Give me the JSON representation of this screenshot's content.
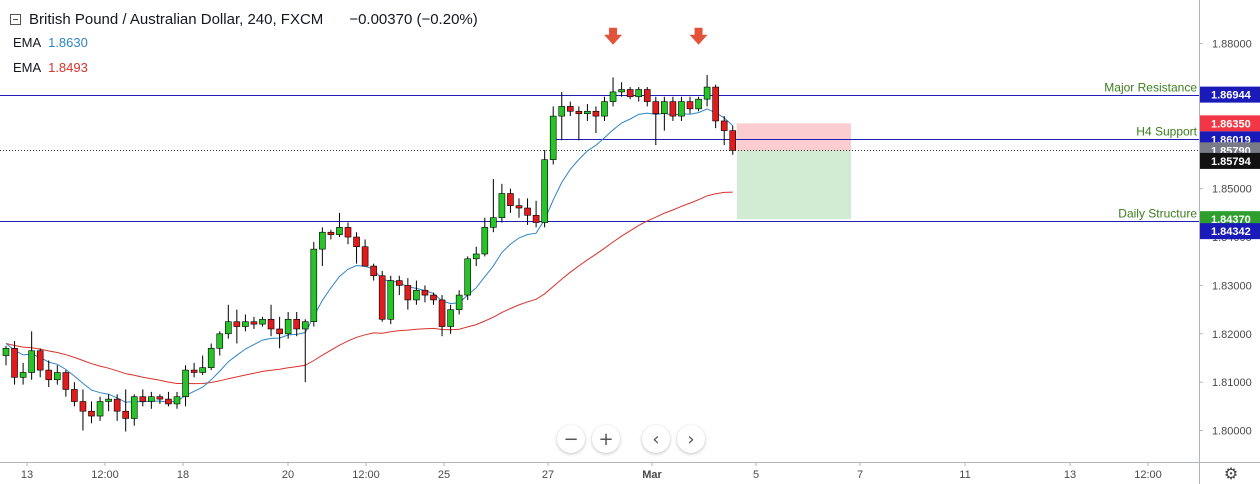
{
  "header": {
    "symbol_title": "British Pound / Australian Dollar, 240, FXCM",
    "change": "−0.00370 (−0.20%)"
  },
  "indicators": [
    {
      "label": "EMA",
      "value": "1.8630",
      "color": "#2f86c6"
    },
    {
      "label": "EMA",
      "value": "1.8493",
      "color": "#d9332c"
    }
  ],
  "chart_data": {
    "type": "candlestick",
    "y_range": [
      1.7935,
      1.889
    ],
    "y_ticks": [
      "1.88000",
      "1.87000",
      "1.86000",
      "1.85000",
      "1.84000",
      "1.83000",
      "1.82000",
      "1.81000",
      "1.80000"
    ],
    "x_ticks": [
      "13",
      "12:00",
      "18",
      "20",
      "12:00",
      "25",
      "27",
      "Mar",
      "5",
      "7",
      "11",
      "13",
      "12:00"
    ],
    "horizontal_levels": [
      {
        "label": "Major Resistance",
        "price": 1.86944,
        "price_label": "1.86944"
      },
      {
        "label": "H4 Support",
        "price": 1.86019,
        "price_label": "1.86019"
      },
      {
        "label": "Daily Structure",
        "price": 1.84342,
        "price_label": "1.84342"
      }
    ],
    "current_price": {
      "price": 1.85794,
      "label": "1.85794"
    },
    "trade_box": {
      "entry": 1.8579,
      "entry_label": "1.85790",
      "stop": 1.8635,
      "stop_label": "1.86350",
      "target": 1.8437,
      "target_label": "1.84370"
    },
    "annotations": [
      {
        "type": "down-arrow",
        "price": 1.881
      },
      {
        "type": "down-arrow",
        "price": 1.881
      }
    ],
    "candles": [
      [
        1.8155,
        1.8175,
        1.8135,
        1.817
      ],
      [
        1.817,
        1.8185,
        1.8095,
        1.811
      ],
      [
        1.811,
        1.814,
        1.8095,
        1.812
      ],
      [
        1.812,
        1.8205,
        1.8105,
        1.8165
      ],
      [
        1.8165,
        1.817,
        1.811,
        1.8125
      ],
      [
        1.8125,
        1.8145,
        1.809,
        1.8105
      ],
      [
        1.8105,
        1.8135,
        1.8095,
        1.812
      ],
      [
        1.812,
        1.8125,
        1.807,
        1.8085
      ],
      [
        1.8085,
        1.81,
        1.805,
        1.806
      ],
      [
        1.806,
        1.8085,
        1.8,
        1.804
      ],
      [
        1.804,
        1.806,
        1.8015,
        1.803
      ],
      [
        1.803,
        1.807,
        1.802,
        1.806
      ],
      [
        1.806,
        1.8075,
        1.804,
        1.8065
      ],
      [
        1.8065,
        1.8075,
        1.802,
        1.804
      ],
      [
        1.804,
        1.8085,
        1.7998,
        1.8025
      ],
      [
        1.8025,
        1.8075,
        1.801,
        1.807
      ],
      [
        1.807,
        1.8085,
        1.805,
        1.806
      ],
      [
        1.806,
        1.808,
        1.8045,
        1.807
      ],
      [
        1.807,
        1.8075,
        1.8055,
        1.8065
      ],
      [
        1.8065,
        1.808,
        1.805,
        1.8055
      ],
      [
        1.8055,
        1.808,
        1.8045,
        1.807
      ],
      [
        1.807,
        1.8135,
        1.805,
        1.8125
      ],
      [
        1.8125,
        1.814,
        1.811,
        1.812
      ],
      [
        1.812,
        1.8155,
        1.8115,
        1.813
      ],
      [
        1.813,
        1.818,
        1.8125,
        1.817
      ],
      [
        1.817,
        1.8205,
        1.8155,
        1.82
      ],
      [
        1.82,
        1.826,
        1.819,
        1.8225
      ],
      [
        1.8225,
        1.825,
        1.818,
        1.8215
      ],
      [
        1.8215,
        1.824,
        1.8205,
        1.8225
      ],
      [
        1.8225,
        1.8235,
        1.821,
        1.822
      ],
      [
        1.822,
        1.8235,
        1.8215,
        1.823
      ],
      [
        1.823,
        1.826,
        1.8195,
        1.821
      ],
      [
        1.821,
        1.8235,
        1.817,
        1.82
      ],
      [
        1.82,
        1.8245,
        1.819,
        1.823
      ],
      [
        1.823,
        1.8245,
        1.8195,
        1.821
      ],
      [
        1.821,
        1.823,
        1.81,
        1.8225
      ],
      [
        1.8225,
        1.839,
        1.8215,
        1.8375
      ],
      [
        1.8375,
        1.842,
        1.834,
        1.841
      ],
      [
        1.841,
        1.8415,
        1.8395,
        1.8405
      ],
      [
        1.8405,
        1.845,
        1.84,
        1.842
      ],
      [
        1.842,
        1.843,
        1.8385,
        1.84
      ],
      [
        1.84,
        1.841,
        1.8345,
        1.838
      ],
      [
        1.838,
        1.8395,
        1.8345,
        1.834
      ],
      [
        1.834,
        1.8345,
        1.831,
        1.832
      ],
      [
        1.832,
        1.833,
        1.8225,
        1.823
      ],
      [
        1.823,
        1.832,
        1.822,
        1.831
      ],
      [
        1.831,
        1.832,
        1.828,
        1.83
      ],
      [
        1.83,
        1.8315,
        1.825,
        1.827
      ],
      [
        1.827,
        1.831,
        1.826,
        1.829
      ],
      [
        1.829,
        1.83,
        1.8265,
        1.828
      ],
      [
        1.828,
        1.8285,
        1.826,
        1.827
      ],
      [
        1.827,
        1.828,
        1.8195,
        1.8215
      ],
      [
        1.8215,
        1.826,
        1.82,
        1.825
      ],
      [
        1.825,
        1.829,
        1.824,
        1.828
      ],
      [
        1.828,
        1.836,
        1.827,
        1.8355
      ],
      [
        1.8355,
        1.838,
        1.834,
        1.8365
      ],
      [
        1.8365,
        1.844,
        1.836,
        1.842
      ],
      [
        1.842,
        1.852,
        1.841,
        1.844
      ],
      [
        1.844,
        1.851,
        1.843,
        1.849
      ],
      [
        1.849,
        1.85,
        1.845,
        1.8465
      ],
      [
        1.8465,
        1.848,
        1.844,
        1.846
      ],
      [
        1.846,
        1.848,
        1.8425,
        1.8445
      ],
      [
        1.8445,
        1.8475,
        1.842,
        1.843
      ],
      [
        1.843,
        1.858,
        1.842,
        1.856
      ],
      [
        1.856,
        1.867,
        1.855,
        1.865
      ],
      [
        1.865,
        1.87,
        1.86,
        1.867
      ],
      [
        1.867,
        1.868,
        1.865,
        1.866
      ],
      [
        1.866,
        1.867,
        1.86,
        1.8655
      ],
      [
        1.8655,
        1.8675,
        1.864,
        1.866
      ],
      [
        1.866,
        1.867,
        1.8615,
        1.865
      ],
      [
        1.865,
        1.869,
        1.864,
        1.868
      ],
      [
        1.868,
        1.873,
        1.867,
        1.87
      ],
      [
        1.87,
        1.872,
        1.869,
        1.8705
      ],
      [
        1.8705,
        1.871,
        1.8685,
        1.869
      ],
      [
        1.869,
        1.871,
        1.868,
        1.8705
      ],
      [
        1.8705,
        1.871,
        1.867,
        1.868
      ],
      [
        1.868,
        1.869,
        1.859,
        1.8655
      ],
      [
        1.8655,
        1.869,
        1.862,
        1.868
      ],
      [
        1.868,
        1.869,
        1.864,
        1.865
      ],
      [
        1.865,
        1.869,
        1.864,
        1.868
      ],
      [
        1.868,
        1.869,
        1.8655,
        1.8665
      ],
      [
        1.8665,
        1.869,
        1.866,
        1.8685
      ],
      [
        1.8685,
        1.8735,
        1.867,
        1.871
      ],
      [
        1.871,
        1.8715,
        1.8625,
        1.864
      ],
      [
        1.864,
        1.865,
        1.859,
        1.862
      ],
      [
        1.862,
        1.863,
        1.857,
        1.8579
      ]
    ],
    "ema_fast_last": 1.863,
    "ema_slow_last": 1.8493
  }
}
